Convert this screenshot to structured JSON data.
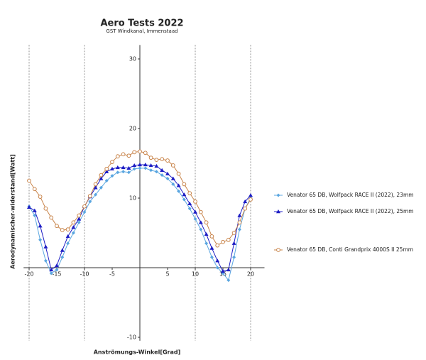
{
  "chart_data": {
    "type": "line",
    "title": "Aero Tests 2022",
    "subtitle": "GST Windkanal, Immenstaad",
    "x_label": "Anströmungs-Winkel[Grad]",
    "y_label": "Aerodynamischer-widerstand[Watt]",
    "x": [
      -20,
      -19,
      -18,
      -17,
      -16,
      -15,
      -14,
      -13,
      -12,
      -11,
      -10,
      -9,
      -8,
      -7,
      -6,
      -5,
      -4,
      -3,
      -2,
      -1,
      0,
      1,
      2,
      3,
      4,
      5,
      6,
      7,
      8,
      9,
      10,
      11,
      12,
      13,
      14,
      15,
      16,
      17,
      18,
      19,
      20
    ],
    "xlim": [
      -21,
      22.5
    ],
    "ylim": [
      -10.5,
      32
    ],
    "xticks": [
      -20,
      -15,
      -10,
      -5,
      5,
      10,
      15,
      20
    ],
    "yticks": [
      -10,
      10,
      20,
      30
    ],
    "x_grid": [
      -20,
      -10,
      10,
      20
    ],
    "legend": "right",
    "series": [
      {
        "name": "Venator 65 DB, Wolfpack RACE II (2022), 23mm",
        "color": "#5aa6e0",
        "marker": "diamond",
        "values": [
          8.8,
          7.5,
          4,
          1,
          -0.8,
          -0.3,
          1.5,
          3.5,
          5,
          6.5,
          8,
          9.5,
          10.5,
          11.5,
          12.5,
          13.2,
          13.7,
          13.8,
          13.7,
          14.2,
          14.3,
          14.3,
          14,
          13.8,
          13.3,
          12.8,
          12,
          11,
          9.8,
          8.5,
          7,
          5.5,
          3.5,
          1.5,
          0,
          -0.8,
          -1.8,
          1.5,
          5.5,
          8.5,
          10
        ]
      },
      {
        "name": "Venator 65 DB, Wolfpack RACE II (2022), 25mm",
        "color": "#1c1cc4",
        "marker": "triangle",
        "values": [
          8.7,
          8.2,
          6,
          3,
          -0.3,
          0.3,
          2.5,
          4.5,
          5.8,
          7,
          8.8,
          10.2,
          11.5,
          12.8,
          13.8,
          14.2,
          14.4,
          14.4,
          14.3,
          14.7,
          14.8,
          14.8,
          14.7,
          14.6,
          14,
          13.5,
          12.8,
          11.8,
          10.5,
          9.2,
          8,
          6.5,
          4.8,
          2.8,
          1,
          -0.5,
          -0.3,
          3.5,
          7.5,
          9.5,
          10.4
        ]
      },
      {
        "name": "Venator 65 DB, Conti Grandprix 4000S II 25mm",
        "color": "#c8844a",
        "marker": "circle",
        "values": [
          12.5,
          11.3,
          10.2,
          8.5,
          7.2,
          6,
          5.4,
          5.5,
          6.5,
          7.5,
          8.8,
          10.3,
          12,
          13.3,
          14.2,
          15.2,
          16,
          16.3,
          16.1,
          16.6,
          16.7,
          16.5,
          15.8,
          15.5,
          15.6,
          15.4,
          14.7,
          13.5,
          12,
          10.7,
          9.5,
          8,
          6.5,
          4.5,
          3.2,
          3.7,
          4,
          5,
          6.5,
          8.5,
          9.8
        ]
      }
    ]
  }
}
